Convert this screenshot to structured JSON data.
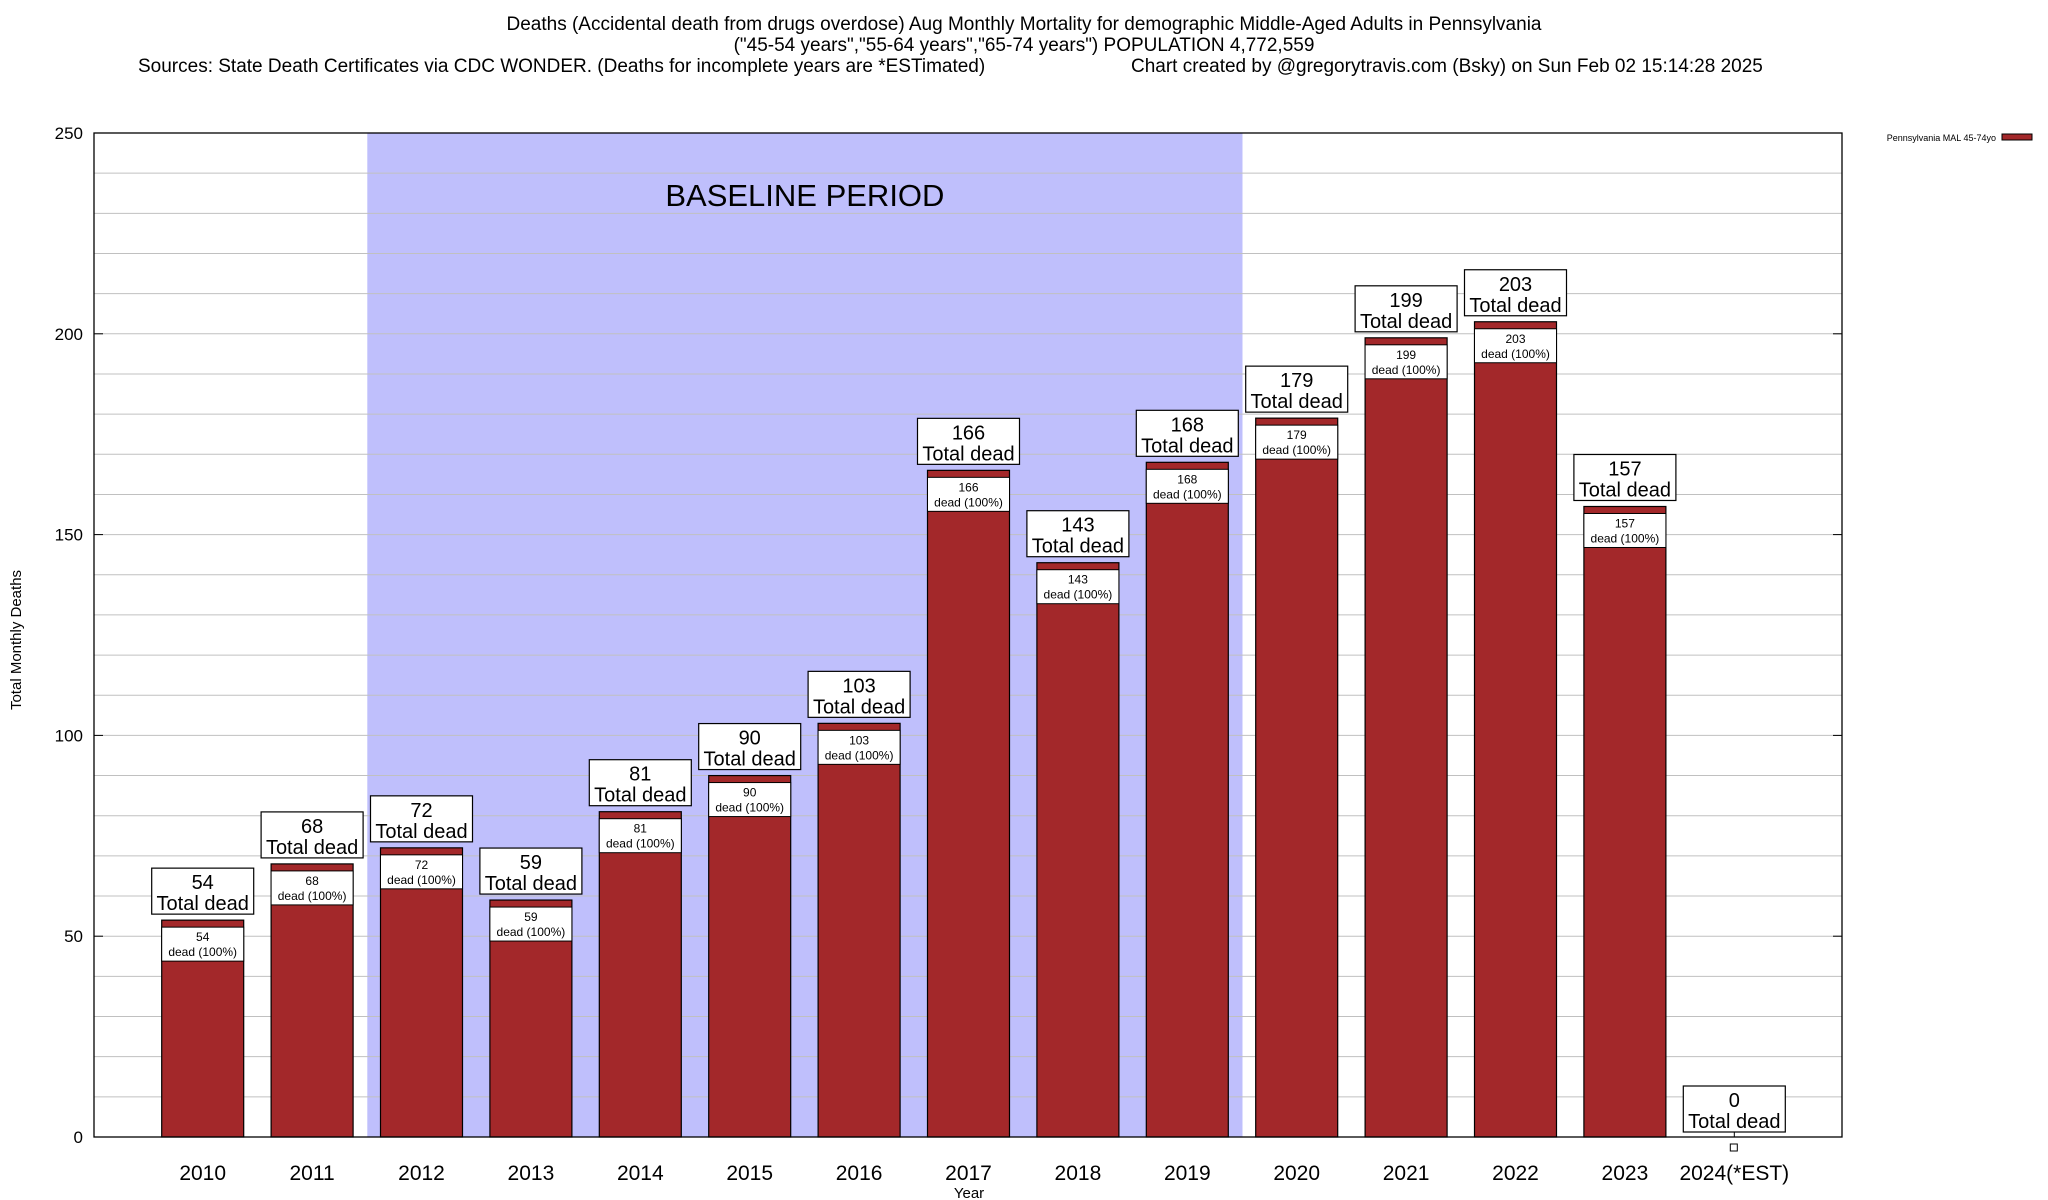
{
  "title": {
    "line1": "Deaths (Accidental death from drugs overdose) Aug Monthly Mortality for demographic Middle-Aged Adults in Pennsylvania",
    "line2": "(\"45-54 years\",\"55-64 years\",\"65-74 years\") POPULATION 4,772,559",
    "sources": "Sources: State Death Certificates via CDC WONDER. (Deaths for incomplete years are *ESTimated)",
    "credit": "Chart created by @gregorytravis.com (Bsky) on Sun Feb 02 15:14:28 2025"
  },
  "colors": {
    "bar": "#a3282a",
    "bar_edge": "#000000",
    "baseline_band": "#bfbffc",
    "grid": "#c0c0c0"
  },
  "chart_data": {
    "type": "bar",
    "title": "Deaths (Accidental death from drugs overdose) Aug Monthly Mortality for demographic Middle-Aged Adults in Pennsylvania",
    "xlabel": "Year",
    "ylabel": "Total Monthly Deaths",
    "ylim": [
      0,
      250
    ],
    "yticks": [
      0,
      50,
      100,
      150,
      200,
      250
    ],
    "categories": [
      "2010",
      "2011",
      "2012",
      "2013",
      "2014",
      "2015",
      "2016",
      "2017",
      "2018",
      "2019",
      "2020",
      "2021",
      "2022",
      "2023",
      "2024(*EST)"
    ],
    "series": [
      {
        "name": "Pennsylvania MAL 45-74yo",
        "values": [
          54,
          68,
          72,
          59,
          81,
          90,
          103,
          166,
          143,
          168,
          179,
          199,
          203,
          157,
          0
        ]
      }
    ],
    "legend": {
      "label": "Pennsylvania MAL 45-74yo",
      "position": "top-right (outside plot)"
    },
    "baseline_period": {
      "label": "BASELINE PERIOD",
      "from": "2012",
      "to": "2019"
    },
    "total_label_suffix": "Total dead",
    "inner_label_suffix": "dead (100%)",
    "grid": true
  }
}
